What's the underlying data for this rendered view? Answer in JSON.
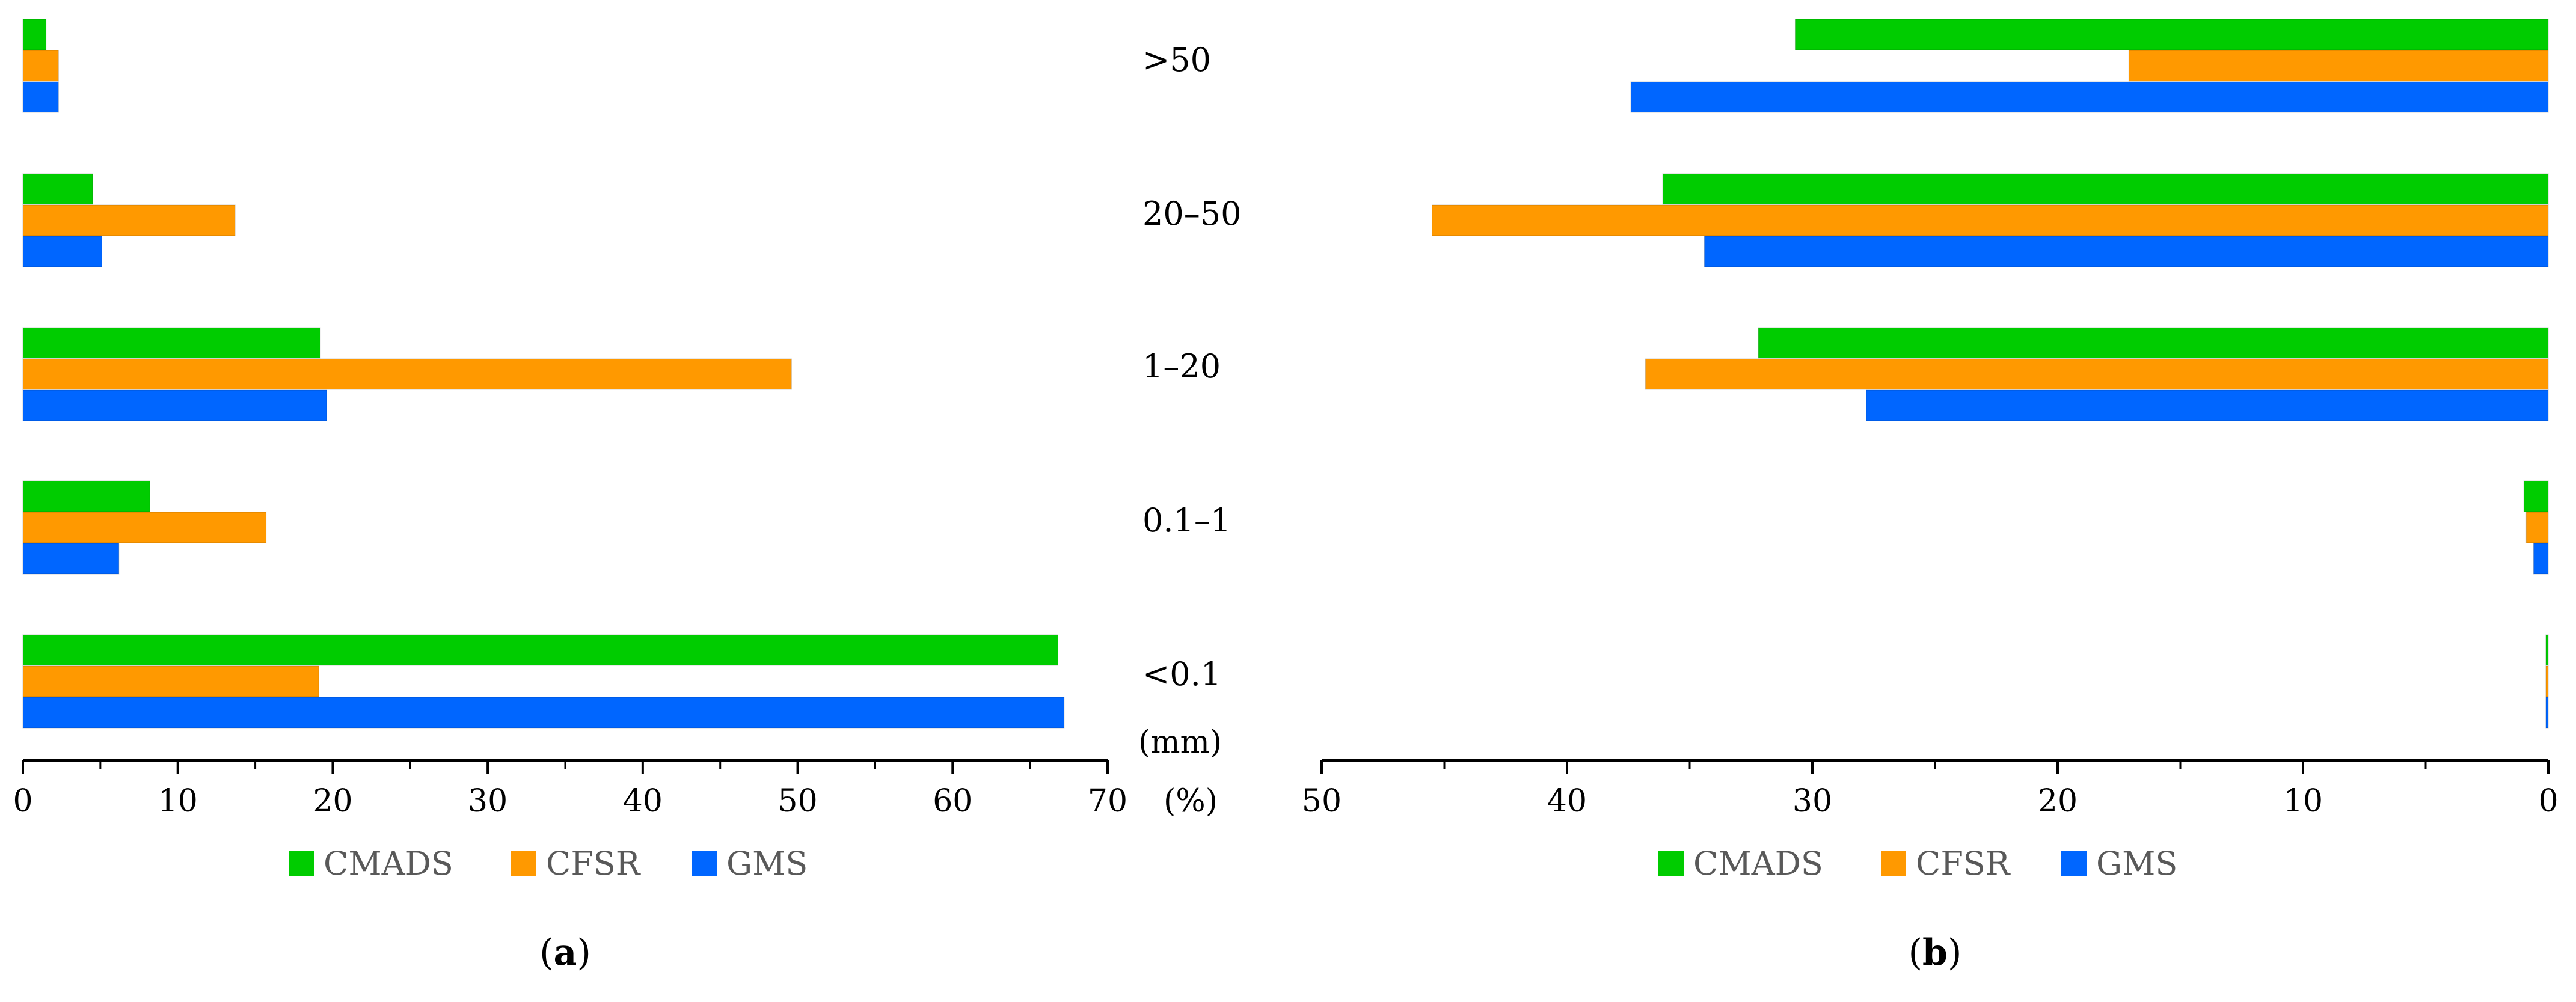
{
  "chart_data": [
    {
      "type": "bar",
      "orientation": "horizontal",
      "panel_label": {
        "open": "(",
        "letter": "a",
        "close": ")"
      },
      "categories": [
        ">50",
        "20–50",
        "1–20",
        "0.1–1",
        "<0.1"
      ],
      "category_unit": "(mm)",
      "value_unit": "(%)",
      "xlim": [
        0,
        70
      ],
      "xticks": [
        0,
        10,
        20,
        30,
        40,
        50,
        60,
        70
      ],
      "series": [
        {
          "name": "CMADS",
          "color": "#00CC00",
          "values": [
            1.5,
            4.5,
            19.2,
            8.2,
            66.8
          ]
        },
        {
          "name": "CFSR",
          "color": "#FF9900",
          "values": [
            2.3,
            13.7,
            49.6,
            15.7,
            19.1
          ]
        },
        {
          "name": "GMS",
          "color": "#0066FF",
          "values": [
            2.3,
            5.1,
            19.6,
            6.2,
            67.2
          ]
        }
      ],
      "legend_position": "bottom-center"
    },
    {
      "type": "bar",
      "orientation": "horizontal",
      "direction": "reversed",
      "panel_label": {
        "open": "(",
        "letter": "b",
        "close": ")"
      },
      "categories": [
        ">50",
        "20–50",
        "1–20",
        "0.1–1",
        "<0.1"
      ],
      "xlim": [
        0,
        50
      ],
      "xticks": [
        50,
        40,
        30,
        20,
        10,
        0
      ],
      "series": [
        {
          "name": "CMADS",
          "color": "#00CC00",
          "values": [
            30.7,
            36.1,
            32.2,
            1.0,
            0.1
          ]
        },
        {
          "name": "CFSR",
          "color": "#FF9900",
          "values": [
            17.1,
            45.5,
            36.8,
            0.9,
            0.1
          ]
        },
        {
          "name": "GMS",
          "color": "#0066FF",
          "values": [
            37.4,
            34.4,
            27.8,
            0.6,
            0.1
          ]
        }
      ],
      "legend_position": "bottom-center"
    }
  ]
}
